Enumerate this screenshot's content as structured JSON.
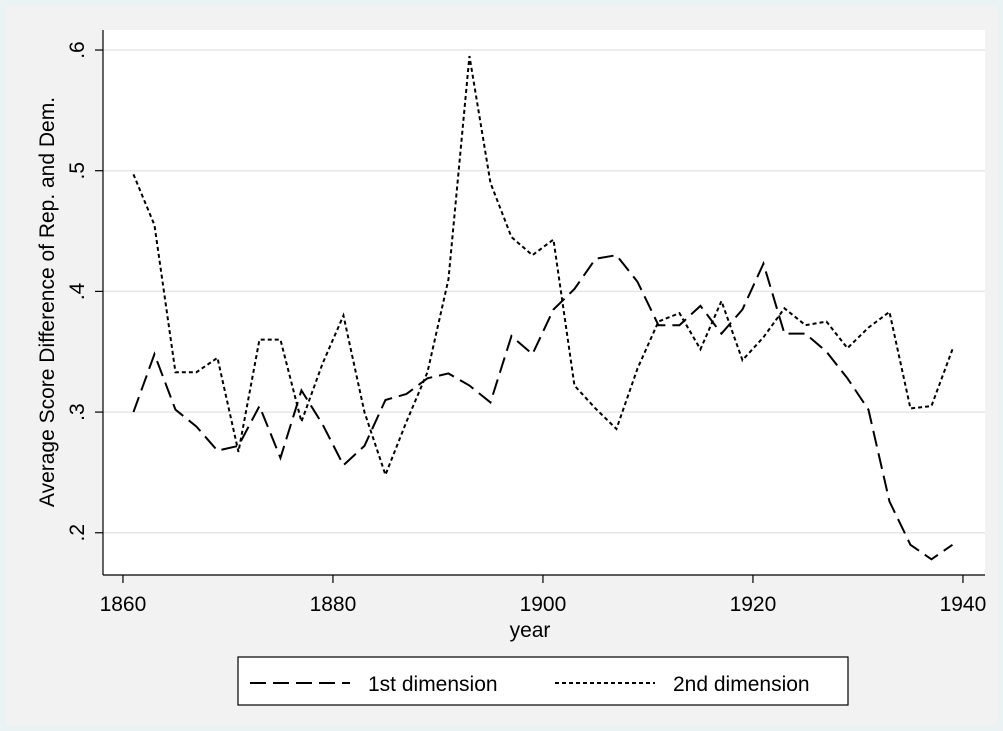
{
  "chart_data": {
    "type": "line",
    "y_label": "Average Score Difference of Rep.  and Dem.",
    "x_label": "year",
    "x": [
      1861,
      1863,
      1865,
      1867,
      1869,
      1871,
      1873,
      1875,
      1877,
      1879,
      1881,
      1883,
      1885,
      1887,
      1889,
      1891,
      1893,
      1895,
      1897,
      1899,
      1901,
      1903,
      1905,
      1907,
      1909,
      1911,
      1913,
      1915,
      1917,
      1919,
      1921,
      1923,
      1925,
      1927,
      1929,
      1931,
      1933,
      1935,
      1937,
      1939
    ],
    "series": [
      {
        "name": "1st dimension",
        "color": "#000000",
        "line_style": "dashed",
        "values": [
          0.3,
          0.348,
          0.302,
          0.288,
          0.268,
          0.272,
          0.305,
          0.262,
          0.318,
          0.29,
          0.256,
          0.272,
          0.31,
          0.315,
          0.328,
          0.332,
          0.322,
          0.308,
          0.363,
          0.348,
          0.385,
          0.402,
          0.427,
          0.43,
          0.408,
          0.372,
          0.372,
          0.388,
          0.365,
          0.385,
          0.423,
          0.365,
          0.365,
          0.35,
          0.328,
          0.302,
          0.226,
          0.19,
          0.178,
          0.19
        ]
      },
      {
        "name": "2nd dimension",
        "color": "#000000",
        "line_style": "dotted",
        "values": [
          0.497,
          0.455,
          0.333,
          0.333,
          0.345,
          0.267,
          0.36,
          0.36,
          0.292,
          0.34,
          0.38,
          0.3,
          0.248,
          0.292,
          0.333,
          0.41,
          0.595,
          0.49,
          0.445,
          0.43,
          0.443,
          0.322,
          0.303,
          0.286,
          0.336,
          0.375,
          0.382,
          0.352,
          0.392,
          0.343,
          0.362,
          0.386,
          0.372,
          0.375,
          0.353,
          0.37,
          0.383,
          0.303,
          0.305,
          0.352
        ]
      }
    ],
    "xlim": [
      1858.1,
      1942.1
    ],
    "xticks": [
      1860,
      1880,
      1900,
      1920,
      1940
    ],
    "ylim": [
      0.165,
      0.6166
    ],
    "yticks": [
      {
        "value": 0.2,
        "label": ".2"
      },
      {
        "value": 0.3,
        "label": ".3"
      },
      {
        "value": 0.4,
        "label": ".4"
      },
      {
        "value": 0.5,
        "label": ".5"
      },
      {
        "value": 0.6,
        "label": ".6"
      }
    ],
    "grid": true,
    "legend_position": "bottom"
  }
}
